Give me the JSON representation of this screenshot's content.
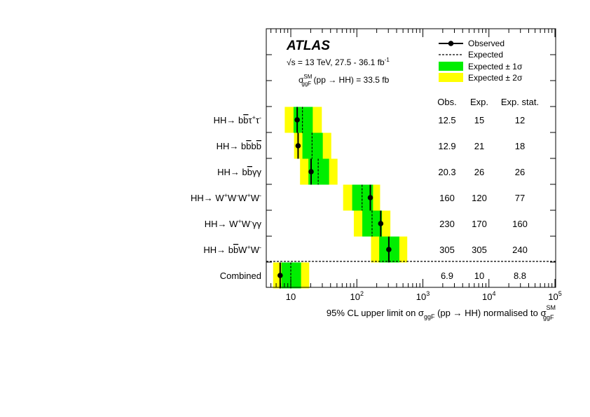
{
  "chart_data": {
    "type": "limit-plot",
    "brand": "ATLAS",
    "energy_text": "√s = 13 TeV,  27.5 - 36.1 fb",
    "energy_unit_exp": "-1",
    "xsec_symbol": "σ",
    "xsec_sup": "SM",
    "xsec_sub": "ggF",
    "xsec_rest": " (pp → HH) = 33.5 fb",
    "xlabel_main": "95% CL upper limit on σ",
    "xlabel_sub": "ggF",
    "xlabel_mid": " (pp → HH) normalised to σ",
    "xlabel_sup2": "SM",
    "xlabel_sub2": "ggF",
    "xscale": "log",
    "xlim": [
      4,
      100000
    ],
    "xticks": [
      {
        "value": 10,
        "base": "10",
        "exp": ""
      },
      {
        "value": 100,
        "base": "10",
        "exp": "2"
      },
      {
        "value": 1000,
        "base": "10",
        "exp": "3"
      },
      {
        "value": 10000,
        "base": "10",
        "exp": "4"
      },
      {
        "value": 100000,
        "base": "10",
        "exp": "5"
      }
    ],
    "legend": {
      "observed": "Observed",
      "expected": "Expected",
      "band1": "Expected ± 1σ",
      "band2": "Expected ± 2σ",
      "position": "top-right"
    },
    "colors": {
      "band1": "#00ee00",
      "band2": "#ffff00",
      "line": "#000000"
    },
    "table_headers": [
      "Obs.",
      "Exp.",
      "Exp. stat."
    ],
    "channels": [
      {
        "parts": [
          {
            "t": "HH→ b"
          },
          {
            "t": "b",
            "bar": true
          },
          {
            "t": "τ"
          },
          {
            "t": "+",
            "sup": true
          },
          {
            "t": "τ"
          },
          {
            "t": "-",
            "sup": true
          }
        ],
        "obs": 12.5,
        "exp": 15,
        "m1": 11.0,
        "p1": 21.5,
        "m2": 8.1,
        "p2": 29.5,
        "obs_txt": "12.5",
        "exp_txt": "15",
        "stat_txt": "12"
      },
      {
        "parts": [
          {
            "t": "HH→ b"
          },
          {
            "t": "b",
            "bar": true
          },
          {
            "t": "b"
          },
          {
            "t": "b",
            "bar": true
          }
        ],
        "obs": 12.9,
        "exp": 21,
        "m1": 15.0,
        "p1": 30.5,
        "m2": 11.2,
        "p2": 41.0,
        "obs_txt": "12.9",
        "exp_txt": "21",
        "stat_txt": "18"
      },
      {
        "parts": [
          {
            "t": "HH→ b"
          },
          {
            "t": "b",
            "bar": true
          },
          {
            "t": "γγ"
          }
        ],
        "obs": 20.3,
        "exp": 26,
        "m1": 18.5,
        "p1": 38.0,
        "m2": 13.8,
        "p2": 51.0,
        "obs_txt": "20.3",
        "exp_txt": "26",
        "stat_txt": "26"
      },
      {
        "parts": [
          {
            "t": "HH→ W"
          },
          {
            "t": "+",
            "sup": true
          },
          {
            "t": "W"
          },
          {
            "t": "-",
            "sup": true
          },
          {
            "t": "W"
          },
          {
            "t": "+",
            "sup": true
          },
          {
            "t": "W"
          },
          {
            "t": "-",
            "sup": true
          }
        ],
        "obs": 160,
        "exp": 120,
        "m1": 85,
        "p1": 176,
        "m2": 62,
        "p2": 225,
        "obs_txt": "160",
        "exp_txt": "120",
        "stat_txt": "77"
      },
      {
        "parts": [
          {
            "t": "HH→ W"
          },
          {
            "t": "+",
            "sup": true
          },
          {
            "t": "W"
          },
          {
            "t": "-",
            "sup": true
          },
          {
            "t": "γγ"
          }
        ],
        "obs": 230,
        "exp": 170,
        "m1": 121,
        "p1": 240,
        "m2": 90,
        "p2": 322,
        "obs_txt": "230",
        "exp_txt": "170",
        "stat_txt": "160"
      },
      {
        "parts": [
          {
            "t": "HH→ b"
          },
          {
            "t": "b",
            "bar": true
          },
          {
            "t": "W"
          },
          {
            "t": "+",
            "sup": true
          },
          {
            "t": "W"
          },
          {
            "t": "-",
            "sup": true
          }
        ],
        "obs": 305,
        "exp": 305,
        "m1": 218,
        "p1": 440,
        "m2": 164,
        "p2": 580,
        "obs_txt": "305",
        "exp_txt": "305",
        "stat_txt": "240"
      },
      {
        "parts": [
          {
            "t": "Combined"
          }
        ],
        "obs": 6.9,
        "exp": 10,
        "m1": 7.2,
        "p1": 14.3,
        "m2": 5.4,
        "p2": 19.0,
        "obs_txt": "6.9",
        "exp_txt": "10",
        "stat_txt": "8.8"
      }
    ]
  }
}
